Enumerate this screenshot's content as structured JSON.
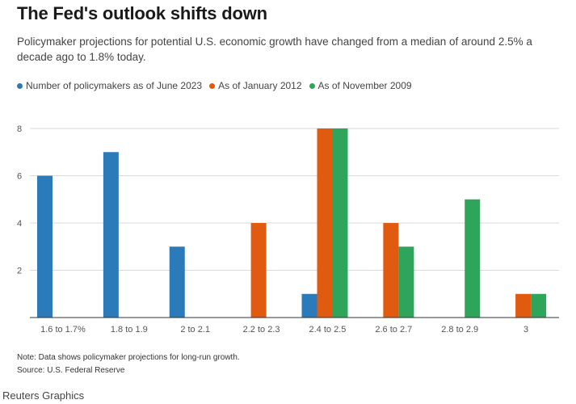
{
  "header": {
    "title": "The Fed's outlook shifts down",
    "subtitle": "Policymaker projections for potential U.S. economic growth have changed from a median of around 2.5% a decade ago to 1.8% today."
  },
  "chart_data": {
    "type": "bar",
    "categories": [
      "1.6 to 1.7%",
      "1.8 to 1.9",
      "2 to 2.1",
      "2.2 to 2.3",
      "2.4 to 2.5",
      "2.6 to 2.7",
      "2.8 to 2.9",
      "3"
    ],
    "series": [
      {
        "name": "Number of policymakers as of June 2023",
        "color": "#2b7bba",
        "values": [
          6,
          7,
          3,
          0,
          1,
          0,
          0,
          0
        ]
      },
      {
        "name": "As of January 2012",
        "color": "#e05a10",
        "values": [
          0,
          0,
          0,
          4,
          8,
          4,
          0,
          1
        ]
      },
      {
        "name": "As of November 2009",
        "color": "#2ea55b",
        "values": [
          0,
          0,
          0,
          0,
          8,
          3,
          5,
          1
        ]
      }
    ],
    "yticks": [
      "2",
      "4",
      "6",
      "8"
    ],
    "ylim": [
      0,
      8
    ],
    "grid": true,
    "legend_position": "top-left"
  },
  "footer": {
    "note": "Note: Data shows policymaker projections for long-run growth.",
    "source": "Source: U.S. Federal Reserve",
    "credit": "Reuters Graphics"
  }
}
